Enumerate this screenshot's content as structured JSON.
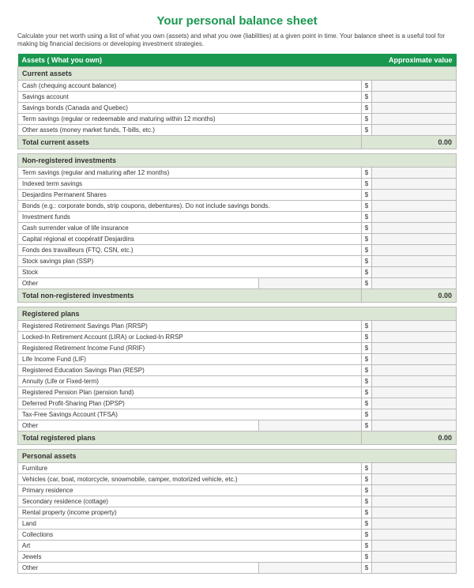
{
  "colors": {
    "title": "#1a9850",
    "header_bg": "#1a9850",
    "section_bg": "#dce6d5",
    "total_bg": "#dce6d5",
    "border": "#bbbbbb",
    "value_bg": "#f5f5f5"
  },
  "title": "Your personal balance sheet",
  "subtitle": "Calculate your net worth using a list of what you own (assets) and what you owe (liabilities) at a given point in time. Your balance sheet is a useful tool for making big financial decisions or developing investment strategies.",
  "header": {
    "assets_label": "Assets ( What you own)",
    "value_label": "Approximate value"
  },
  "currency": "$",
  "sections": [
    {
      "name": "Current assets",
      "items": [
        {
          "label": "Cash (chequing account balance)"
        },
        {
          "label": "Savings account"
        },
        {
          "label": "Savings bonds (Canada and Quebec)"
        },
        {
          "label": "Term savings (regular or redeemable and maturing within 12 months)"
        },
        {
          "label": "Other assets (money market funds, T-bills, etc.)"
        }
      ],
      "total_label": "Total current assets",
      "total_value": "0.00"
    },
    {
      "name": "Non-registered investments",
      "items": [
        {
          "label": "Term savings (regular and maturing after 12 months)"
        },
        {
          "label": "Indexed term savings"
        },
        {
          "label": "Desjardins Permanent Shares"
        },
        {
          "label": "Bonds (e.g.: corporate bonds, strip coupons, debentures). Do not include savings bonds."
        },
        {
          "label": "Investment funds"
        },
        {
          "label": "Cash surrender value of life insurance"
        },
        {
          "label": "Capital régional et coopératif Desjardins"
        },
        {
          "label": "Fonds des travailleurs (FTQ, CSN, etc.)"
        },
        {
          "label": "Stock savings plan (SSP)"
        },
        {
          "label": "Stock"
        },
        {
          "label": "Other",
          "editable": true
        }
      ],
      "total_label": "Total non-registered investments",
      "total_value": "0.00"
    },
    {
      "name": "Registered plans",
      "items": [
        {
          "label": "Registered Retirement Savings Plan (RRSP)"
        },
        {
          "label": "Locked-In Retirement Account (LIRA) or Locked-In RRSP"
        },
        {
          "label": "Registered Retirement Income Fund (RRIF)"
        },
        {
          "label": "Life Income Fund (LIF)"
        },
        {
          "label": "Registered Education Savings Plan (RESP)"
        },
        {
          "label": "Annuity (Life or Fixed-term)"
        },
        {
          "label": "Registered Pension Plan (pension fund)"
        },
        {
          "label": "Deferred Profit-Sharing Plan (DPSP)"
        },
        {
          "label": "Tax-Free Savings Account (TFSA)"
        },
        {
          "label": "Other",
          "editable": true
        }
      ],
      "total_label": "Total registered plans",
      "total_value": "0.00"
    },
    {
      "name": "Personal assets",
      "items": [
        {
          "label": "Furniture"
        },
        {
          "label": "Vehicles (car, boat, motorcycle, snowmobile, camper, motorized vehicle, etc.)"
        },
        {
          "label": "Primary residence"
        },
        {
          "label": "Secondary residence (cottage)"
        },
        {
          "label": "Rental property (income property)"
        },
        {
          "label": "Land"
        },
        {
          "label": "Collections"
        },
        {
          "label": "Art"
        },
        {
          "label": "Jewels"
        },
        {
          "label": "Other",
          "editable": true
        }
      ],
      "total_label": null,
      "total_value": null
    }
  ]
}
